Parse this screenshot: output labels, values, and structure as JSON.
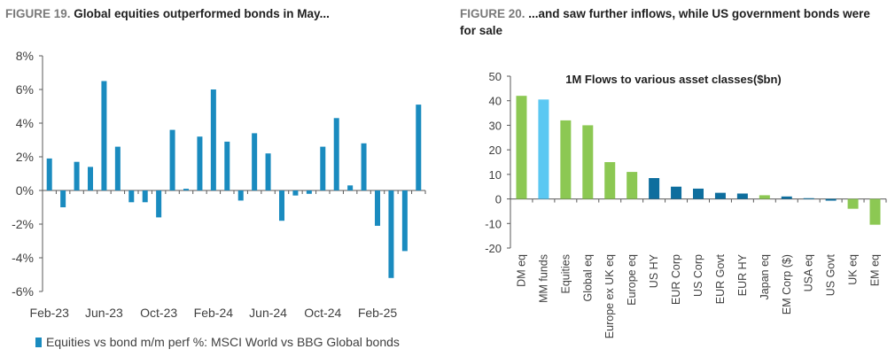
{
  "figures": [
    {
      "label": "FIGURE 19.",
      "title": "Global equities outperformed bonds in May..."
    },
    {
      "label": "FIGURE 20.",
      "title": "...and saw further inflows, while US government bonds were for sale"
    }
  ],
  "colors": {
    "blue": "#1a8bbf",
    "green": "#8cc853",
    "light_blue": "#5bc8f2",
    "dark_blue": "#0e6e9e"
  },
  "chart_data": [
    {
      "type": "bar",
      "title": "",
      "xlabel": "",
      "ylabel": "",
      "ylim": [
        -6,
        8
      ],
      "yticks": [
        "-6%",
        "-4%",
        "-2%",
        "0%",
        "2%",
        "4%",
        "6%",
        "8%"
      ],
      "x": [
        "Feb-23",
        "Mar-23",
        "Apr-23",
        "May-23",
        "Jun-23",
        "Jul-23",
        "Aug-23",
        "Sep-23",
        "Oct-23",
        "Nov-23",
        "Dec-23",
        "Jan-24",
        "Feb-24",
        "Mar-24",
        "Apr-24",
        "May-24",
        "Jun-24",
        "Jul-24",
        "Aug-24",
        "Sep-24",
        "Oct-24",
        "Nov-24",
        "Dec-24",
        "Jan-25",
        "Feb-25",
        "Mar-25",
        "Apr-25",
        "May-25"
      ],
      "x_tick_labels": [
        "Feb-23",
        "Jun-23",
        "Oct-23",
        "Feb-24",
        "Jun-24",
        "Oct-24",
        "Feb-25"
      ],
      "series": [
        {
          "name": "Equities vs bond m/m perf %: MSCI World vs BBG Global bonds",
          "values": [
            1.9,
            -1.0,
            1.7,
            1.4,
            6.5,
            2.6,
            -0.7,
            -0.7,
            -1.6,
            3.6,
            0.1,
            3.2,
            6.0,
            2.9,
            -0.6,
            3.4,
            2.2,
            -1.8,
            -0.3,
            -0.2,
            2.6,
            4.3,
            0.3,
            2.8,
            -2.1,
            -5.2,
            -3.6,
            5.1
          ]
        }
      ],
      "legend": "bottom",
      "grid": false
    },
    {
      "type": "bar",
      "title": "1M Flows to various asset classes($bn)",
      "xlabel": "",
      "ylabel": "",
      "ylim": [
        -20,
        50
      ],
      "yticks": [
        "-20",
        "-10",
        "0",
        "10",
        "20",
        "30",
        "40",
        "50"
      ],
      "categories": [
        "DM eq",
        "MM funds",
        "Equities",
        "Global eq",
        "Europe ex UK eq",
        "Europe eq",
        "US HY",
        "EUR Corp",
        "US Corp",
        "EUR Govt",
        "EUR HY",
        "Japan eq",
        "EM Corp ($)",
        "USA eq",
        "US Govt",
        "UK eq",
        "EM eq"
      ],
      "values": [
        42,
        40.5,
        32,
        30,
        15,
        11,
        8.5,
        5,
        4.2,
        2.5,
        2.2,
        1.5,
        1,
        0.3,
        -0.7,
        -4,
        -10.5
      ],
      "bar_colors": [
        "green",
        "light_blue",
        "green",
        "green",
        "green",
        "green",
        "dark_blue",
        "dark_blue",
        "dark_blue",
        "dark_blue",
        "dark_blue",
        "green",
        "dark_blue",
        "dark_blue",
        "dark_blue",
        "green",
        "green"
      ],
      "grid": false
    }
  ]
}
